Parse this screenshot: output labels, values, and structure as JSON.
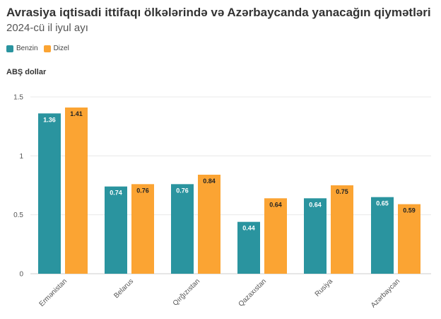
{
  "title": "Avrasiya iqtisadi ittifaqı ölkələrində və Azərbaycanda yanacağın qiymətləri",
  "subtitle": "2024-cü il iyul ayı",
  "chart_data": {
    "type": "bar",
    "title": "Avrasiya iqtisadi ittifaqı ölkələrində və Azərbaycanda yanacağın qiymətləri",
    "subtitle": "2024-cü il iyul ayı",
    "ylabel": "ABŞ dollar",
    "xlabel": "",
    "ylim": [
      0,
      1.5
    ],
    "yticks": [
      0,
      0.5,
      1,
      1.5
    ],
    "ytick_labels": [
      "0",
      "0.5",
      "1",
      "1.5"
    ],
    "grid": true,
    "legend": "top-left",
    "categories": [
      "Ermənistan",
      "Belarus",
      "Qırğızıstan",
      "Qazaxıstan",
      "Rusiya",
      "Azərbaycan"
    ],
    "series": [
      {
        "name": "Benzin",
        "color": "#2a949f",
        "values": [
          1.36,
          0.74,
          0.76,
          0.44,
          0.64,
          0.65
        ],
        "labels": [
          "1.36",
          "0.74",
          "0.76",
          "0.44",
          "0.64",
          "0.65"
        ],
        "label_color": "#ffffff"
      },
      {
        "name": "Dizel",
        "color": "#fba433",
        "values": [
          1.41,
          0.76,
          0.84,
          0.64,
          0.75,
          0.59
        ],
        "labels": [
          "1.41",
          "0.76",
          "0.84",
          "0.64",
          "0.75",
          "0.59"
        ],
        "label_color": "#222222"
      }
    ]
  }
}
